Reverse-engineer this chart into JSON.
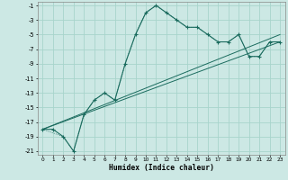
{
  "xlabel": "Humidex (Indice chaleur)",
  "background_color": "#cce8e4",
  "grid_color": "#a8d4cc",
  "line_color": "#1a6b5e",
  "xlim_min": -0.5,
  "xlim_max": 23.5,
  "ylim_min": -21.5,
  "ylim_max": -0.5,
  "xticks": [
    0,
    1,
    2,
    3,
    4,
    5,
    6,
    7,
    8,
    9,
    10,
    11,
    12,
    13,
    14,
    15,
    16,
    17,
    18,
    19,
    20,
    21,
    22,
    23
  ],
  "yticks": [
    -1,
    -3,
    -5,
    -7,
    -9,
    -11,
    -13,
    -15,
    -17,
    -19,
    -21
  ],
  "main_x": [
    0,
    1,
    2,
    3,
    4,
    5,
    6,
    7,
    8,
    9,
    10,
    11,
    12,
    13,
    14,
    15,
    16,
    17,
    18,
    19,
    20,
    21,
    22,
    23
  ],
  "main_y": [
    -18,
    -18,
    -19,
    -21,
    -16,
    -14,
    -13,
    -14,
    -9,
    -5,
    -2,
    -1,
    -2,
    -3,
    -4,
    -4,
    -5,
    -6,
    -6,
    -5,
    -8,
    -8,
    -6,
    -6
  ],
  "dotted_x": [
    0,
    2,
    3,
    4,
    5,
    6,
    7,
    8,
    9,
    10,
    11,
    12,
    13,
    14,
    15,
    16,
    17,
    18,
    19,
    20,
    21,
    22,
    23
  ],
  "dotted_y": [
    -18,
    -19,
    -21,
    -16,
    -14,
    -13,
    -14,
    -9,
    -5,
    -2,
    -1,
    -2,
    -3,
    -4,
    -4,
    -5,
    -6,
    -6,
    -5,
    -8,
    -8,
    -6,
    -6
  ],
  "line1_x": [
    0,
    23
  ],
  "line1_y": [
    -18,
    -6
  ],
  "line2_x": [
    0,
    23
  ],
  "line2_y": [
    -18,
    -5
  ]
}
